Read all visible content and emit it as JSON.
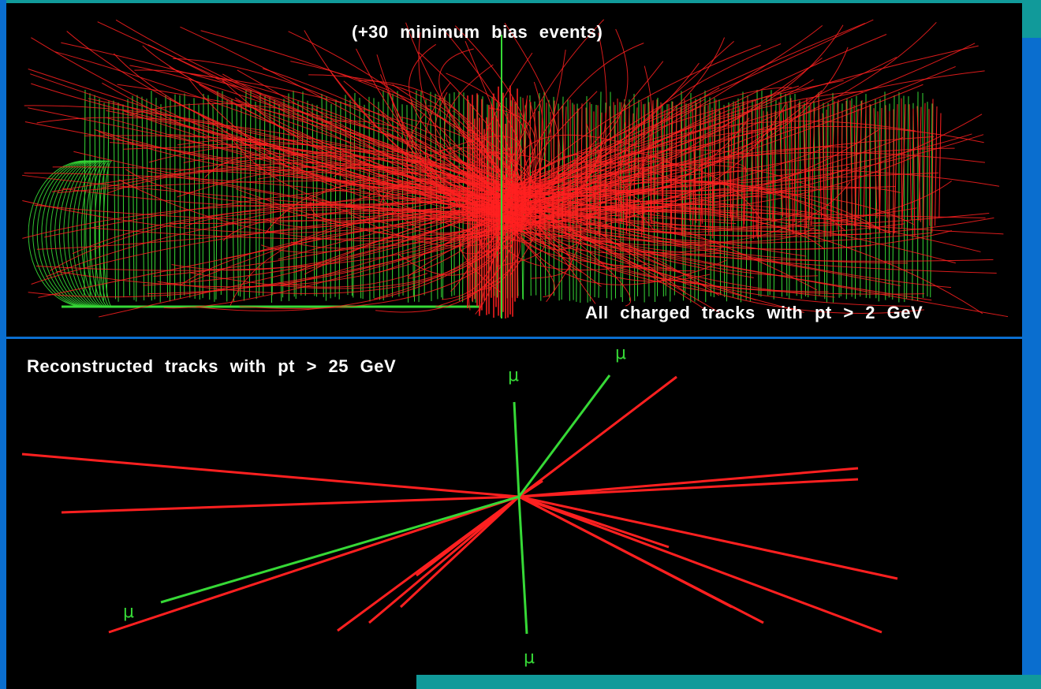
{
  "top_panel": {
    "caption": "(+30 minimum bias events)",
    "corner_label": "All charged tracks with pt > 2 GeV"
  },
  "bottom_panel": {
    "caption": "Reconstructed tracks with pt > 25 GeV",
    "muon_labels": [
      "μ",
      "μ",
      "μ",
      "μ"
    ]
  },
  "colors": {
    "background": "#000000",
    "frame": "#0a6ecf",
    "accent": "#119a9a",
    "track_red": "#ff2020",
    "track_green": "#36d936"
  }
}
